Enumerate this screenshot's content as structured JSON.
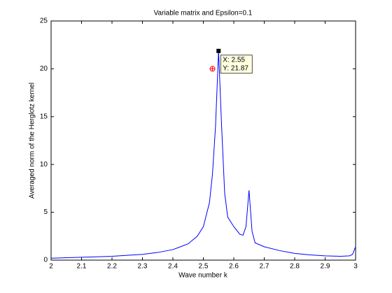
{
  "chart_data": {
    "type": "line",
    "title": "Variable matrix and Epsilon=0.1",
    "xlabel": "Wave number k",
    "ylabel": "Averaged norm of the Herglotz kernel",
    "x": [
      2.0,
      2.1,
      2.2,
      2.3,
      2.35,
      2.4,
      2.45,
      2.48,
      2.5,
      2.52,
      2.53,
      2.54,
      2.55,
      2.56,
      2.57,
      2.58,
      2.6,
      2.62,
      2.63,
      2.64,
      2.65,
      2.66,
      2.67,
      2.7,
      2.75,
      2.8,
      2.85,
      2.9,
      2.95,
      2.98,
      2.99,
      3.0
    ],
    "series": [
      {
        "color": "#0000ff",
        "values": [
          0.2,
          0.3,
          0.4,
          0.6,
          0.8,
          1.1,
          1.7,
          2.5,
          3.5,
          6,
          9,
          14,
          21.87,
          14,
          7,
          4.5,
          3.5,
          2.7,
          2.6,
          3.5,
          7.3,
          3,
          1.8,
          1.4,
          1.0,
          0.7,
          0.55,
          0.45,
          0.4,
          0.45,
          0.6,
          1.4
        ]
      }
    ],
    "points": [
      {
        "x": 2.53,
        "y": 20,
        "color": "#ff0000"
      }
    ],
    "datatip": {
      "x": 2.55,
      "y": 21.87,
      "labels": [
        "X: 2.55",
        "Y: 21.87"
      ]
    },
    "xlim": [
      2,
      3
    ],
    "xticks": [
      2,
      2.1,
      2.2,
      2.3,
      2.4,
      2.5,
      2.6,
      2.7,
      2.8,
      2.9,
      3
    ],
    "ylim": [
      0,
      25
    ],
    "yticks": [
      0,
      5,
      10,
      15,
      20,
      25
    ]
  }
}
